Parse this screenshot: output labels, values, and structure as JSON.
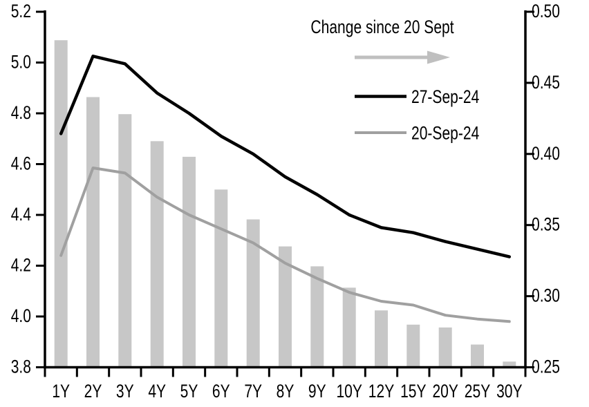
{
  "chart_data": {
    "type": "bar-line-combo",
    "categories": [
      "1Y",
      "2Y",
      "3Y",
      "4Y",
      "5Y",
      "6Y",
      "7Y",
      "8Y",
      "9Y",
      "10Y",
      "12Y",
      "15Y",
      "20Y",
      "25Y",
      "30Y"
    ],
    "series": [
      {
        "name": "Change since 20 Sept",
        "type": "bar",
        "axis": "right",
        "color": "#c7c7c7",
        "values": [
          0.48,
          0.44,
          0.428,
          0.409,
          0.398,
          0.375,
          0.354,
          0.335,
          0.321,
          0.306,
          0.29,
          0.28,
          0.278,
          0.266,
          0.254
        ]
      },
      {
        "name": "27-Sep-24",
        "type": "line",
        "axis": "left",
        "color": "#000000",
        "values": [
          4.72,
          5.025,
          4.995,
          4.88,
          4.8,
          4.71,
          4.64,
          4.55,
          4.48,
          4.4,
          4.35,
          4.33,
          4.295,
          4.265,
          4.235
        ]
      },
      {
        "name": "20-Sep-24",
        "type": "line",
        "axis": "left",
        "color": "#a0a0a0",
        "values": [
          4.24,
          4.585,
          4.565,
          4.47,
          4.4,
          4.345,
          4.29,
          4.21,
          4.15,
          4.095,
          4.06,
          4.045,
          4.005,
          3.99,
          3.98
        ]
      }
    ],
    "left_axis": {
      "min": 3.8,
      "max": 5.2,
      "ticks": [
        "5.2",
        "5.0",
        "4.8",
        "4.6",
        "4.4",
        "4.2",
        "4.0",
        "3.8"
      ]
    },
    "right_axis": {
      "min": 0.25,
      "max": 0.5,
      "ticks": [
        "0.50",
        "0.45",
        "0.40",
        "0.35",
        "0.30",
        "0.25"
      ]
    },
    "legend": {
      "arrow_color": "#bfbfbf",
      "grid": "off",
      "legend_position": "top-right-inside"
    }
  }
}
